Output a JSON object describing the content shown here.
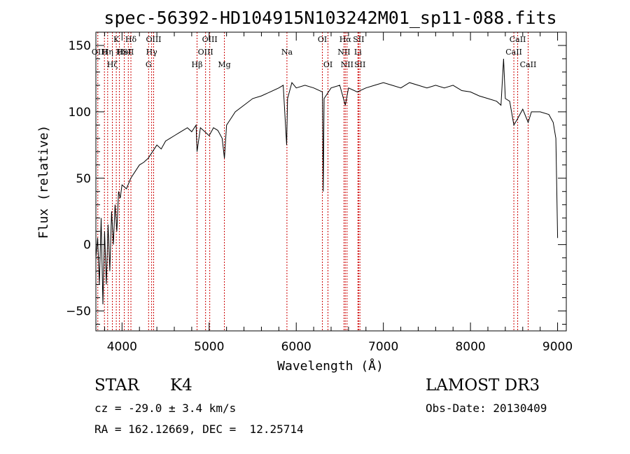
{
  "chart_data": {
    "type": "line",
    "title": "spec-56392-HD104915N103242M01_sp11-088.fits",
    "xlabel": "Wavelength (Å)",
    "ylabel": "Flux (relative)",
    "xlim": [
      3700,
      9100
    ],
    "ylim": [
      -65,
      160
    ],
    "xticks": [
      4000,
      5000,
      6000,
      7000,
      8000,
      9000
    ],
    "yticks": [
      -50,
      0,
      50,
      100,
      150
    ],
    "x_minor_step": 200,
    "y_minor_step": 10,
    "series": [
      {
        "name": "spectrum",
        "x": [
          3700,
          3720,
          3740,
          3760,
          3780,
          3800,
          3820,
          3840,
          3860,
          3880,
          3900,
          3920,
          3940,
          3960,
          3980,
          4000,
          4050,
          4100,
          4150,
          4200,
          4250,
          4300,
          4350,
          4400,
          4450,
          4500,
          4550,
          4600,
          4650,
          4700,
          4750,
          4800,
          4850,
          4861,
          4900,
          4950,
          5000,
          5050,
          5100,
          5150,
          5175,
          5200,
          5250,
          5300,
          5400,
          5500,
          5600,
          5700,
          5800,
          5850,
          5890,
          5900,
          5950,
          6000,
          6100,
          6200,
          6300,
          6310,
          6320,
          6400,
          6500,
          6563,
          6600,
          6700,
          6800,
          6900,
          7000,
          7100,
          7200,
          7300,
          7400,
          7500,
          7600,
          7700,
          7800,
          7900,
          8000,
          8100,
          8200,
          8300,
          8350,
          8380,
          8400,
          8450,
          8498,
          8542,
          8600,
          8662,
          8700,
          8800,
          8900,
          8950,
          8980,
          9000
        ],
        "y": [
          -10,
          5,
          -30,
          20,
          -45,
          10,
          -30,
          15,
          -20,
          25,
          0,
          30,
          10,
          40,
          35,
          45,
          42,
          50,
          55,
          60,
          62,
          65,
          70,
          75,
          72,
          78,
          80,
          82,
          84,
          86,
          88,
          85,
          90,
          70,
          88,
          85,
          82,
          88,
          86,
          80,
          65,
          90,
          95,
          100,
          105,
          110,
          112,
          115,
          118,
          120,
          75,
          110,
          122,
          118,
          120,
          118,
          115,
          40,
          110,
          118,
          120,
          105,
          118,
          115,
          118,
          120,
          122,
          120,
          118,
          122,
          120,
          118,
          120,
          118,
          120,
          116,
          115,
          112,
          110,
          108,
          105,
          140,
          110,
          108,
          90,
          95,
          102,
          92,
          100,
          100,
          98,
          92,
          80,
          5
        ]
      }
    ],
    "line_markers": [
      {
        "wavelength": 3722,
        "row": 2,
        "label": "OII"
      },
      {
        "wavelength": 3798,
        "row": 2,
        "label": "H"
      },
      {
        "wavelength": 3835,
        "row": 2,
        "label": "Hη"
      },
      {
        "wavelength": 3889,
        "row": 3,
        "label": "Hζ"
      },
      {
        "wavelength": 3934,
        "row": 1,
        "label": "K"
      },
      {
        "wavelength": 3970,
        "row": 2,
        "label": "H"
      },
      {
        "wavelength": 4026,
        "row": 2,
        "label": "HeI"
      },
      {
        "wavelength": 4072,
        "row": 2,
        "label": "SII"
      },
      {
        "wavelength": 4102,
        "row": 1,
        "label": "Hδ"
      },
      {
        "wavelength": 4305,
        "row": 3,
        "label": "G"
      },
      {
        "wavelength": 4340,
        "row": 2,
        "label": "Hγ"
      },
      {
        "wavelength": 4363,
        "row": 1,
        "label": "OIII"
      },
      {
        "wavelength": 4861,
        "row": 3,
        "label": "Hβ"
      },
      {
        "wavelength": 4959,
        "row": 2,
        "label": "OIII"
      },
      {
        "wavelength": 5007,
        "row": 1,
        "label": "OIII"
      },
      {
        "wavelength": 5175,
        "row": 3,
        "label": "Mg"
      },
      {
        "wavelength": 5893,
        "row": 2,
        "label": "Na"
      },
      {
        "wavelength": 6300,
        "row": 1,
        "label": "OI"
      },
      {
        "wavelength": 6364,
        "row": 3,
        "label": "OI"
      },
      {
        "wavelength": 6548,
        "row": 2,
        "label": "NII"
      },
      {
        "wavelength": 6563,
        "row": 1,
        "label": "Hα"
      },
      {
        "wavelength": 6583,
        "row": 3,
        "label": "NII"
      },
      {
        "wavelength": 6708,
        "row": 2,
        "label": "Li"
      },
      {
        "wavelength": 6716,
        "row": 1,
        "label": "SII"
      },
      {
        "wavelength": 6731,
        "row": 3,
        "label": "SII"
      },
      {
        "wavelength": 8498,
        "row": 2,
        "label": "CaII"
      },
      {
        "wavelength": 8542,
        "row": 1,
        "label": "CaII"
      },
      {
        "wavelength": 8662,
        "row": 3,
        "label": "CaII"
      }
    ]
  },
  "info": {
    "object_class": "STAR",
    "subclass": "K4",
    "survey": "LAMOST DR3",
    "cz": "cz = -29.0 ± 3.4 km/s",
    "obs_date": "Obs-Date: 20130409",
    "coords": "RA = 162.12669, DEC =  12.25714"
  },
  "colors": {
    "line_marker": "#cc0000",
    "spectrum": "#000000",
    "axes": "#000000"
  }
}
